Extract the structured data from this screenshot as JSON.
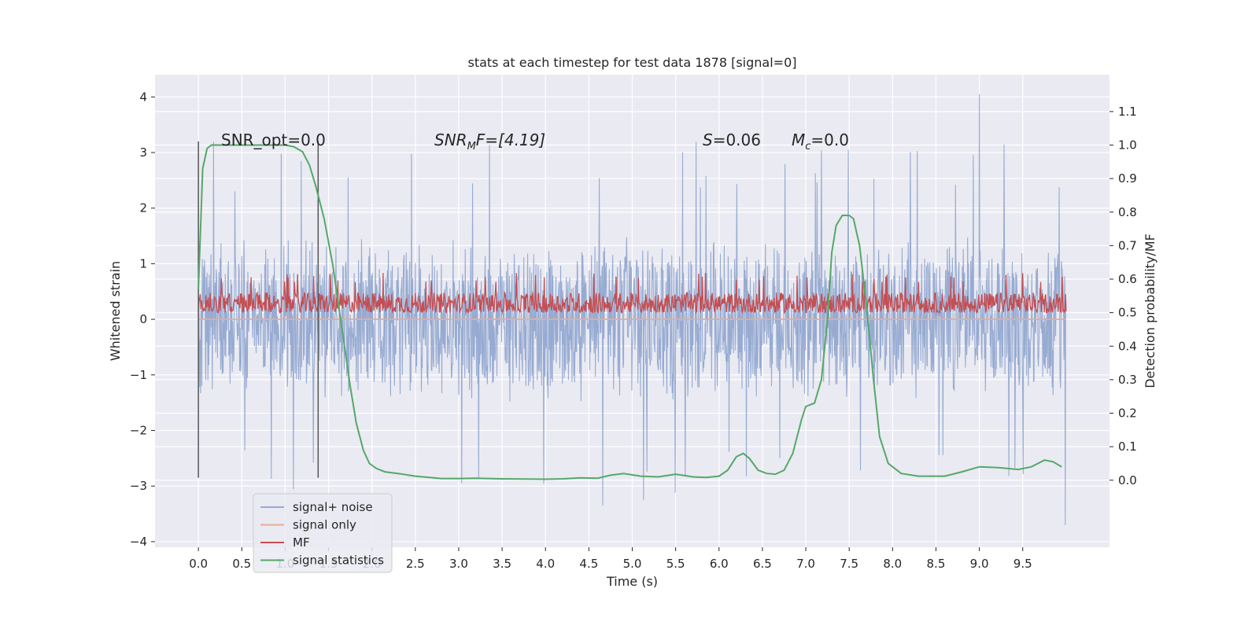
{
  "chart_data": {
    "type": "line",
    "title": "stats at each timestep for test data 1878 [signal=0]",
    "xlabel": "Time (s)",
    "ylabel": "Whitened strain",
    "y2label": "Detection probability/MF",
    "xlim": [
      -0.5,
      10.5
    ],
    "ylim": [
      -4.1,
      4.4
    ],
    "y2lim": [
      -0.2,
      1.21
    ],
    "xticks": [
      "0.0",
      "0.5",
      "1.0",
      "1.5",
      "2.0",
      "2.5",
      "3.0",
      "3.5",
      "4.0",
      "4.5",
      "5.0",
      "5.5",
      "6.0",
      "6.5",
      "7.0",
      "7.5",
      "8.0",
      "8.5",
      "9.0",
      "9.5"
    ],
    "yticks": [
      "−4",
      "−3",
      "−2",
      "−1",
      "0",
      "1",
      "2",
      "3",
      "4"
    ],
    "y2ticks": [
      "0.0",
      "0.1",
      "0.2",
      "0.3",
      "0.4",
      "0.5",
      "0.6",
      "0.7",
      "0.8",
      "0.9",
      "1.0",
      "1.1"
    ],
    "grid": true,
    "legend_position": "lower-left",
    "annotations": {
      "snr_opt": "SNR_opt=0.0",
      "snr_mf_sym": "SNR",
      "snr_mf_sub": "M",
      "snr_mf_rest": "F=[4.19]",
      "s_sym": "S",
      "s_rest": "=0.06",
      "mc_sym": "M",
      "mc_sub": "c",
      "mc_rest": "=0.0"
    },
    "vlines": {
      "x": [
        0.0,
        1.38
      ],
      "y_range": [
        -2.85,
        3.2
      ]
    },
    "series": [
      {
        "name": "signal+ noise",
        "color": "#97abd2",
        "x_range": [
          0.0,
          10.0
        ],
        "typical_range": [
          -1.5,
          1.5
        ],
        "extreme_range": [
          -3.7,
          4.05
        ]
      },
      {
        "name": "signal only",
        "color": "#e8ab92",
        "x_range": [
          0.0,
          10.0
        ],
        "values": [
          0.0,
          0.0
        ]
      },
      {
        "name": "MF",
        "color": "#c44e52",
        "x_range": [
          0.0,
          10.0
        ],
        "baseline": 0.5,
        "typical_peak": 0.56,
        "max_peak": 0.62
      },
      {
        "name": "signal statistics",
        "color": "#55a868",
        "x": [
          0.0,
          0.05,
          0.1,
          0.15,
          0.25,
          0.4,
          0.6,
          0.8,
          1.0,
          1.1,
          1.2,
          1.28,
          1.35,
          1.45,
          1.55,
          1.65,
          1.75,
          1.82,
          1.9,
          1.97,
          2.05,
          2.15,
          2.3,
          2.5,
          2.8,
          3.0,
          3.2,
          3.5,
          4.0,
          4.2,
          4.4,
          4.6,
          4.75,
          4.9,
          5.1,
          5.3,
          5.5,
          5.7,
          5.85,
          6.0,
          6.1,
          6.2,
          6.28,
          6.35,
          6.45,
          6.55,
          6.65,
          6.75,
          6.85,
          6.95,
          7.0,
          7.1,
          7.18,
          7.25,
          7.3,
          7.35,
          7.42,
          7.5,
          7.55,
          7.62,
          7.7,
          7.78,
          7.85,
          7.95,
          8.1,
          8.3,
          8.6,
          8.8,
          9.0,
          9.2,
          9.45,
          9.6,
          9.75,
          9.85,
          9.95
        ],
        "values": [
          0.57,
          0.93,
          0.99,
          1.0,
          1.0,
          1.0,
          1.0,
          1.0,
          1.0,
          0.995,
          0.98,
          0.94,
          0.88,
          0.78,
          0.64,
          0.46,
          0.28,
          0.17,
          0.09,
          0.05,
          0.035,
          0.025,
          0.02,
          0.012,
          0.005,
          0.005,
          0.006,
          0.004,
          0.003,
          0.004,
          0.007,
          0.006,
          0.015,
          0.02,
          0.012,
          0.01,
          0.018,
          0.01,
          0.008,
          0.012,
          0.03,
          0.07,
          0.08,
          0.065,
          0.03,
          0.02,
          0.018,
          0.03,
          0.08,
          0.18,
          0.22,
          0.23,
          0.3,
          0.48,
          0.68,
          0.76,
          0.79,
          0.79,
          0.78,
          0.7,
          0.52,
          0.3,
          0.13,
          0.05,
          0.02,
          0.012,
          0.012,
          0.025,
          0.04,
          0.038,
          0.032,
          0.04,
          0.06,
          0.055,
          0.04
        ]
      }
    ]
  }
}
